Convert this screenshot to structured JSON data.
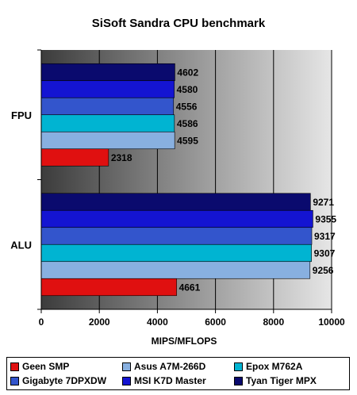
{
  "chart_data": {
    "type": "bar",
    "orientation": "horizontal",
    "title": "SiSoft Sandra CPU benchmark",
    "xlabel": "MIPS/MFLOPS",
    "ylabel": "",
    "xlim": [
      0,
      10000
    ],
    "xticks": [
      "0",
      "2000",
      "4000",
      "6000",
      "8000",
      "10000"
    ],
    "categories": [
      "FPU",
      "ALU"
    ],
    "series": [
      {
        "name": "Tyan Tiger MPX",
        "color": "#0a0a6e",
        "values": [
          4602,
          9271
        ]
      },
      {
        "name": "MSI K7D Master",
        "color": "#1414d2",
        "values": [
          4580,
          9355
        ]
      },
      {
        "name": "Gigabyte 7DPXDW",
        "color": "#3355cc",
        "values": [
          4556,
          9317
        ]
      },
      {
        "name": "Epox M762A",
        "color": "#00b4d2",
        "values": [
          4586,
          9307
        ]
      },
      {
        "name": "Asus A7M-266D",
        "color": "#88b0e0",
        "values": [
          4595,
          9256
        ]
      },
      {
        "name": "Geen SMP",
        "color": "#e01010",
        "values": [
          2318,
          4661
        ]
      }
    ],
    "legend_position": "bottom",
    "grid": true
  },
  "legend_order": [
    "Geen SMP",
    "Asus A7M-266D",
    "Epox M762A",
    "Gigabyte 7DPXDW",
    "MSI K7D Master",
    "Tyan Tiger MPX"
  ]
}
